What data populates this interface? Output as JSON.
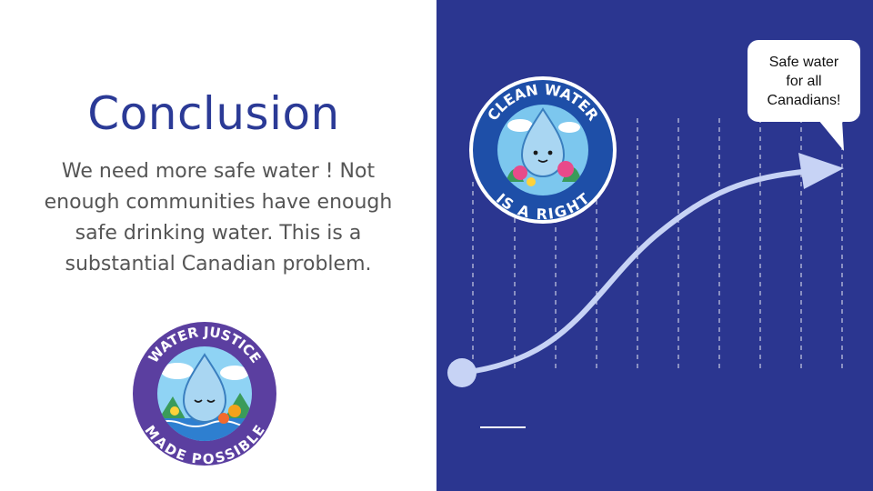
{
  "slide": {
    "title": "Conclusion",
    "body": "We need more safe water ! Not enough communities have enough safe drinking water. This is a substantial Canadian problem.",
    "callout": "Safe water\nfor all\nCanadians!"
  },
  "badges": {
    "top": {
      "line1": "CLEAN WATER",
      "line2": "IS A RIGHT"
    },
    "bottom": {
      "line1": "WATER JUSTICE",
      "line2": "MADE POSSIBLE"
    }
  },
  "colors": {
    "title": "#2b3a96",
    "body_text": "#555555",
    "right_panel": "#2b3690",
    "arrow": "#c7d3f5",
    "badge_ring": "#1e4fa8",
    "water_drop": "#a9d6f2"
  }
}
